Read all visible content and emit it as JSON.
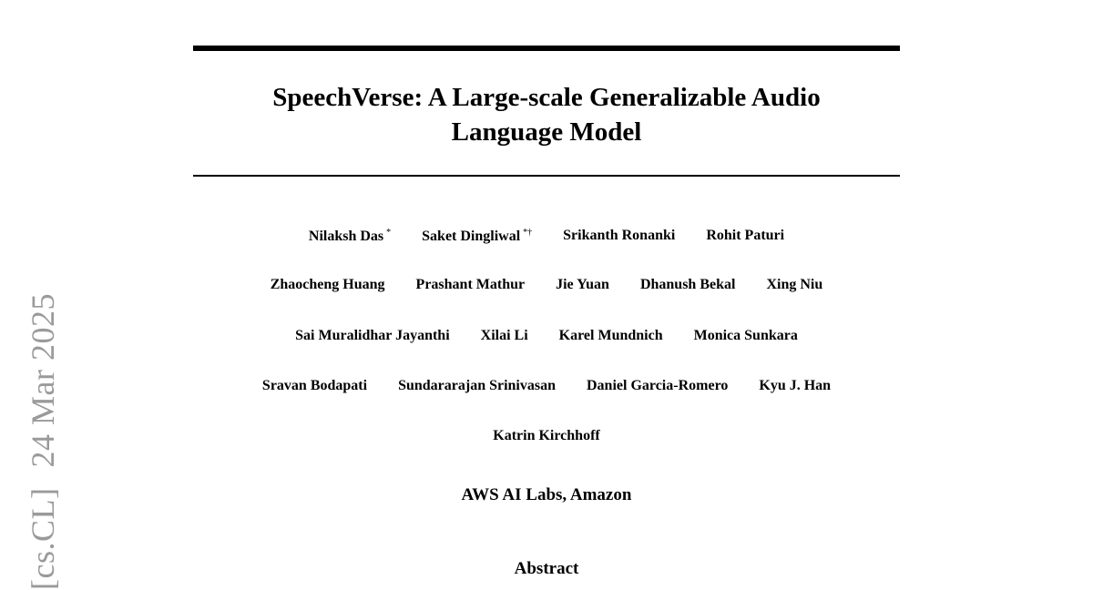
{
  "paper": {
    "title_line1": "SpeechVerse: A Large-scale Generalizable Audio",
    "title_line2": "Language Model",
    "author_rows": [
      [
        {
          "name": "Nilaksh Das",
          "mark": "*"
        },
        {
          "name": "Saket Dingliwal",
          "mark": "*†"
        },
        {
          "name": "Srikanth Ronanki",
          "mark": ""
        },
        {
          "name": "Rohit Paturi",
          "mark": ""
        }
      ],
      [
        {
          "name": "Zhaocheng Huang",
          "mark": ""
        },
        {
          "name": "Prashant Mathur",
          "mark": ""
        },
        {
          "name": "Jie Yuan",
          "mark": ""
        },
        {
          "name": "Dhanush Bekal",
          "mark": ""
        },
        {
          "name": "Xing Niu",
          "mark": ""
        }
      ],
      [
        {
          "name": "Sai Muralidhar Jayanthi",
          "mark": ""
        },
        {
          "name": "Xilai Li",
          "mark": ""
        },
        {
          "name": "Karel Mundnich",
          "mark": ""
        },
        {
          "name": "Monica Sunkara",
          "mark": ""
        }
      ],
      [
        {
          "name": "Sravan Bodapati",
          "mark": ""
        },
        {
          "name": "Sundararajan Srinivasan",
          "mark": ""
        },
        {
          "name": "Daniel Garcia-Romero",
          "mark": ""
        },
        {
          "name": "Kyu J. Han",
          "mark": ""
        }
      ],
      [
        {
          "name": "Katrin Kirchhoff",
          "mark": ""
        }
      ]
    ],
    "affiliation": "AWS AI Labs, Amazon",
    "abstract_heading": "Abstract"
  },
  "arxiv_stamp": {
    "category": "[cs.CL]",
    "date": "24 Mar 2025"
  }
}
